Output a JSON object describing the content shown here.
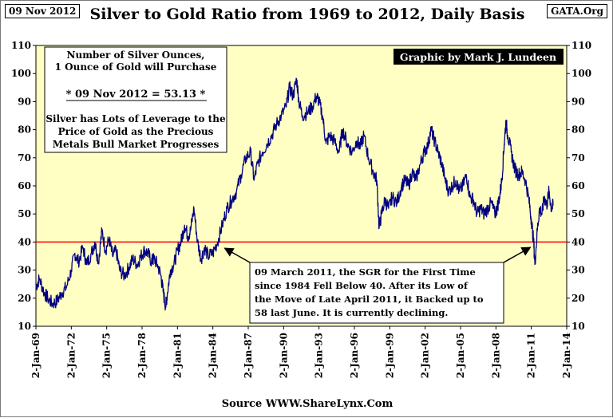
{
  "header": {
    "date_label": "09 Nov 2012",
    "title": "Silver to Gold Ratio from 1969 to 2012, Daily Basis",
    "site_label": "GATA.Org"
  },
  "credit": "Graphic by Mark J. Lundeen",
  "info_box": {
    "line1": "Number of Silver Ounces,",
    "line2": "1 Ounce of Gold will Purchase",
    "value_line": "* 09 Nov 2012 = 53.13 *",
    "line3": "Silver has Lots of Leverage to the",
    "line4": "Price of Gold as the Precious",
    "line5": "Metals Bull Market Progresses"
  },
  "annotation": {
    "line1": "09 March 2011, the SGR for the First Time",
    "line2": "since 1984 Fell Below 40.  After its  Low of",
    "line3": "the Move of Late April 2011, it  Backed up to",
    "line4": "58  last June.  It is currently declining."
  },
  "source": "Source WWW.ShareLynx.Com",
  "colors": {
    "plot_background": "#ffffc4",
    "series": "#000080",
    "reference_line": "#ff0000"
  },
  "chart_data": {
    "type": "line",
    "title": "Silver to Gold Ratio from 1969 to 2012, Daily Basis",
    "ylim": [
      10,
      110
    ],
    "y_ticks": [
      10,
      20,
      30,
      40,
      50,
      60,
      70,
      80,
      90,
      100,
      110
    ],
    "y_axis_both_sides": true,
    "x_range": [
      1969,
      2014
    ],
    "x_ticks": [
      {
        "label": "2-Jan-69",
        "x": 1969
      },
      {
        "label": "2-Jan-72",
        "x": 1972
      },
      {
        "label": "2-Jan-75",
        "x": 1975
      },
      {
        "label": "2-Jan-78",
        "x": 1978
      },
      {
        "label": "2-Jan-81",
        "x": 1981
      },
      {
        "label": "2-Jan-84",
        "x": 1984
      },
      {
        "label": "2-Jan-87",
        "x": 1987
      },
      {
        "label": "2-Jan-90",
        "x": 1990
      },
      {
        "label": "2-Jan-93",
        "x": 1993
      },
      {
        "label": "2-Jan-96",
        "x": 1996
      },
      {
        "label": "2-Jan-99",
        "x": 1999
      },
      {
        "label": "2-Jan-02",
        "x": 2002
      },
      {
        "label": "2-Jan-05",
        "x": 2005
      },
      {
        "label": "2-Jan-08",
        "x": 2008
      },
      {
        "label": "2-Jan-11",
        "x": 2011
      },
      {
        "label": "2-Jan-14",
        "x": 2014
      }
    ],
    "reference_line": 40,
    "grid": false,
    "series": [
      {
        "name": "",
        "points": [
          [
            1969.0,
            24
          ],
          [
            1969.3,
            27
          ],
          [
            1969.7,
            22
          ],
          [
            1970.0,
            20
          ],
          [
            1970.4,
            18
          ],
          [
            1970.8,
            19
          ],
          [
            1971.2,
            22
          ],
          [
            1971.6,
            24
          ],
          [
            1972.0,
            30
          ],
          [
            1972.3,
            36
          ],
          [
            1972.6,
            33
          ],
          [
            1973.0,
            38
          ],
          [
            1973.3,
            32
          ],
          [
            1973.7,
            36
          ],
          [
            1974.0,
            40
          ],
          [
            1974.3,
            33
          ],
          [
            1974.6,
            44
          ],
          [
            1974.9,
            37
          ],
          [
            1975.2,
            41
          ],
          [
            1975.5,
            35
          ],
          [
            1975.8,
            37
          ],
          [
            1976.1,
            30
          ],
          [
            1976.5,
            28
          ],
          [
            1976.9,
            31
          ],
          [
            1977.2,
            34
          ],
          [
            1977.6,
            32
          ],
          [
            1977.9,
            35
          ],
          [
            1978.2,
            37
          ],
          [
            1978.5,
            36
          ],
          [
            1978.8,
            33
          ],
          [
            1979.0,
            34
          ],
          [
            1979.3,
            32
          ],
          [
            1979.6,
            28
          ],
          [
            1979.8,
            22
          ],
          [
            1980.0,
            17
          ],
          [
            1980.15,
            22
          ],
          [
            1980.4,
            30
          ],
          [
            1980.7,
            32
          ],
          [
            1981.0,
            37
          ],
          [
            1981.3,
            40
          ],
          [
            1981.6,
            46
          ],
          [
            1981.9,
            42
          ],
          [
            1982.1,
            44
          ],
          [
            1982.4,
            52
          ],
          [
            1982.7,
            40
          ],
          [
            1983.0,
            34
          ],
          [
            1983.3,
            38
          ],
          [
            1983.6,
            35
          ],
          [
            1984.0,
            36
          ],
          [
            1984.4,
            40
          ],
          [
            1984.8,
            46
          ],
          [
            1985.2,
            52
          ],
          [
            1985.6,
            55
          ],
          [
            1986.0,
            58
          ],
          [
            1986.4,
            64
          ],
          [
            1986.8,
            70
          ],
          [
            1987.2,
            72
          ],
          [
            1987.5,
            62
          ],
          [
            1987.8,
            68
          ],
          [
            1988.2,
            72
          ],
          [
            1988.6,
            75
          ],
          [
            1989.0,
            78
          ],
          [
            1989.4,
            82
          ],
          [
            1989.8,
            85
          ],
          [
            1990.2,
            88
          ],
          [
            1990.5,
            95
          ],
          [
            1990.8,
            92
          ],
          [
            1991.1,
            98
          ],
          [
            1991.3,
            90
          ],
          [
            1991.6,
            85
          ],
          [
            1992.0,
            86
          ],
          [
            1992.4,
            88
          ],
          [
            1992.8,
            92
          ],
          [
            1993.0,
            90
          ],
          [
            1993.3,
            85
          ],
          [
            1993.6,
            75
          ],
          [
            1993.9,
            78
          ],
          [
            1994.3,
            76
          ],
          [
            1994.7,
            72
          ],
          [
            1995.0,
            80
          ],
          [
            1995.4,
            75
          ],
          [
            1995.8,
            72
          ],
          [
            1996.2,
            76
          ],
          [
            1996.5,
            74
          ],
          [
            1996.8,
            78
          ],
          [
            1997.2,
            70
          ],
          [
            1997.6,
            65
          ],
          [
            1997.9,
            62
          ],
          [
            1998.1,
            45
          ],
          [
            1998.3,
            50
          ],
          [
            1998.6,
            55
          ],
          [
            1998.9,
            52
          ],
          [
            1999.2,
            56
          ],
          [
            1999.6,
            54
          ],
          [
            2000.0,
            60
          ],
          [
            2000.3,
            62
          ],
          [
            2000.6,
            60
          ],
          [
            2000.9,
            65
          ],
          [
            2001.2,
            62
          ],
          [
            2001.6,
            68
          ],
          [
            2001.9,
            72
          ],
          [
            2002.2,
            74
          ],
          [
            2002.5,
            80
          ],
          [
            2002.8,
            76
          ],
          [
            2003.1,
            72
          ],
          [
            2003.4,
            68
          ],
          [
            2003.7,
            62
          ],
          [
            2004.0,
            58
          ],
          [
            2004.3,
            60
          ],
          [
            2004.6,
            62
          ],
          [
            2004.9,
            58
          ],
          [
            2005.2,
            60
          ],
          [
            2005.5,
            64
          ],
          [
            2005.8,
            56
          ],
          [
            2006.1,
            55
          ],
          [
            2006.4,
            50
          ],
          [
            2006.7,
            52
          ],
          [
            2007.0,
            50
          ],
          [
            2007.3,
            52
          ],
          [
            2007.6,
            54
          ],
          [
            2007.9,
            50
          ],
          [
            2008.1,
            52
          ],
          [
            2008.3,
            56
          ],
          [
            2008.5,
            62
          ],
          [
            2008.7,
            75
          ],
          [
            2008.85,
            83
          ],
          [
            2009.0,
            78
          ],
          [
            2009.3,
            72
          ],
          [
            2009.6,
            66
          ],
          [
            2009.9,
            64
          ],
          [
            2010.2,
            65
          ],
          [
            2010.5,
            62
          ],
          [
            2010.8,
            55
          ],
          [
            2011.0,
            48
          ],
          [
            2011.2,
            40
          ],
          [
            2011.3,
            32
          ],
          [
            2011.5,
            44
          ],
          [
            2011.7,
            52
          ],
          [
            2011.9,
            50
          ],
          [
            2012.1,
            56
          ],
          [
            2012.3,
            53
          ],
          [
            2012.5,
            58
          ],
          [
            2012.7,
            52
          ],
          [
            2012.86,
            53.13
          ]
        ]
      }
    ]
  }
}
